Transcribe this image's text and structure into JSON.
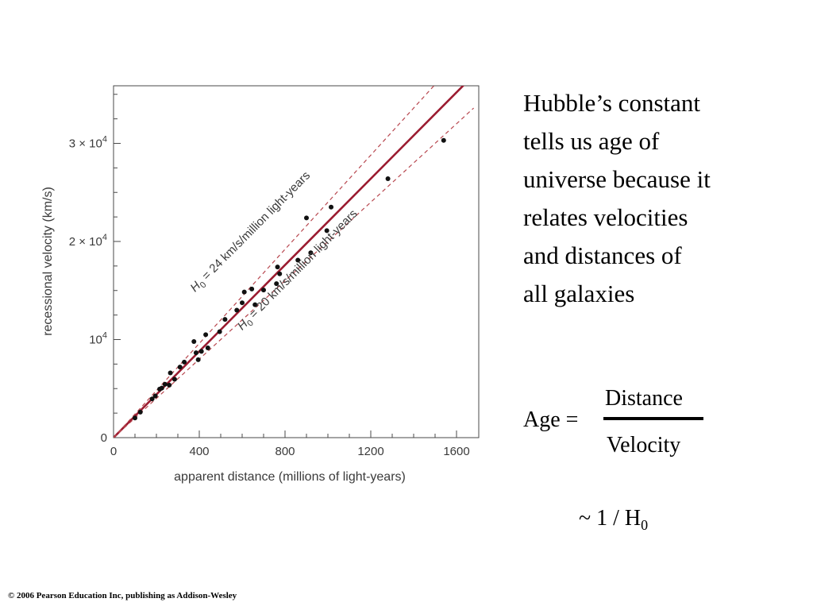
{
  "chart_data": {
    "type": "scatter",
    "xlabel": "apparent distance (millions of light-years)",
    "ylabel": "recessional velocity (km/s)",
    "xlim": [
      0,
      1680
    ],
    "ylim": [
      0,
      35500
    ],
    "x_ticks": [
      {
        "value": 0,
        "label": "0"
      },
      {
        "value": 400,
        "label": "400"
      },
      {
        "value": 800,
        "label": "800"
      },
      {
        "value": 1200,
        "label": "1200"
      },
      {
        "value": 1600,
        "label": "1600"
      }
    ],
    "y_ticks": [
      {
        "value": 0,
        "label": "0"
      },
      {
        "value": 10000,
        "label": "10",
        "exp": "4",
        "prefix": ""
      },
      {
        "value": 20000,
        "label": "2 × 10",
        "exp": "4"
      },
      {
        "value": 30000,
        "label": "3 × 10",
        "exp": "4"
      }
    ],
    "grid": false,
    "lines": [
      {
        "slope": 22,
        "style": "solid",
        "color": "#9b1b30"
      },
      {
        "slope": 24,
        "style": "dashed",
        "color": "#b8474f",
        "label_main": "H",
        "label_sub": "0",
        "label_rest": " = 24 km/s/million light-years"
      },
      {
        "slope": 20,
        "style": "dashed",
        "color": "#b8474f",
        "label_main": "H",
        "label_sub": "0",
        "label_rest": " = 20 km/s/million light-years"
      }
    ],
    "points": [
      {
        "x": 100,
        "y": 2000
      },
      {
        "x": 125,
        "y": 2600
      },
      {
        "x": 180,
        "y": 3950
      },
      {
        "x": 195,
        "y": 4250
      },
      {
        "x": 215,
        "y": 4950
      },
      {
        "x": 225,
        "y": 5050
      },
      {
        "x": 240,
        "y": 5450
      },
      {
        "x": 260,
        "y": 5350
      },
      {
        "x": 265,
        "y": 6600
      },
      {
        "x": 285,
        "y": 5950
      },
      {
        "x": 310,
        "y": 7200
      },
      {
        "x": 330,
        "y": 7700
      },
      {
        "x": 375,
        "y": 9800
      },
      {
        "x": 385,
        "y": 8650
      },
      {
        "x": 395,
        "y": 7950
      },
      {
        "x": 410,
        "y": 8800
      },
      {
        "x": 430,
        "y": 10500
      },
      {
        "x": 440,
        "y": 9150
      },
      {
        "x": 495,
        "y": 10800
      },
      {
        "x": 520,
        "y": 12050
      },
      {
        "x": 575,
        "y": 13000
      },
      {
        "x": 600,
        "y": 13750
      },
      {
        "x": 610,
        "y": 14850
      },
      {
        "x": 645,
        "y": 15150
      },
      {
        "x": 660,
        "y": 13550
      },
      {
        "x": 700,
        "y": 15050
      },
      {
        "x": 760,
        "y": 15700
      },
      {
        "x": 765,
        "y": 17400
      },
      {
        "x": 775,
        "y": 16700
      },
      {
        "x": 860,
        "y": 18100
      },
      {
        "x": 900,
        "y": 22400
      },
      {
        "x": 920,
        "y": 18850
      },
      {
        "x": 995,
        "y": 21100
      },
      {
        "x": 1015,
        "y": 23500
      },
      {
        "x": 1280,
        "y": 26400
      },
      {
        "x": 1540,
        "y": 30300
      }
    ]
  },
  "caption": {
    "lines": [
      "Hubble’s constant",
      "tells us age of",
      "universe because it",
      "relates  velocities",
      "and distances of",
      "all galaxies"
    ]
  },
  "formula": {
    "age_label": "Age =",
    "numerator": "Distance",
    "denominator": "Velocity",
    "approx_prefix": "~  1 / H",
    "approx_sub": "0"
  },
  "copyright": "© 2006 Pearson Education Inc, publishing as Addison-Wesley"
}
